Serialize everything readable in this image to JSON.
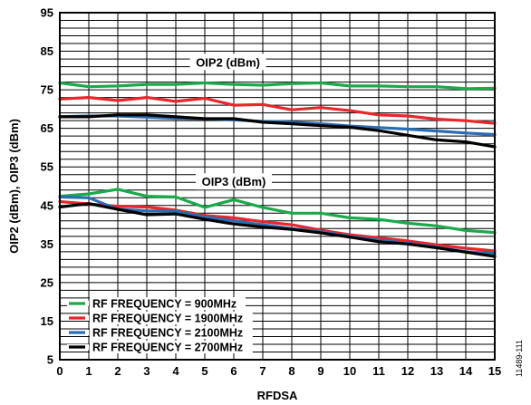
{
  "chart_data": {
    "type": "line",
    "title": "",
    "xlabel": "RFDSA",
    "ylabel": "OIP2 (dBm), OIP3 (dBm)",
    "xlim": [
      0,
      15
    ],
    "ylim": [
      5,
      95
    ],
    "x_ticks": [
      "0",
      "1",
      "2",
      "3",
      "4",
      "5",
      "6",
      "7",
      "8",
      "9",
      "10",
      "11",
      "12",
      "13",
      "14",
      "15"
    ],
    "y_ticks": [
      "5",
      "15",
      "25",
      "35",
      "45",
      "55",
      "65",
      "75",
      "85",
      "95"
    ],
    "grid": true,
    "legend_placement": "bottom-left",
    "annotations": [
      {
        "text": "OIP2 (dBm)",
        "x": 5.8,
        "y": 82
      },
      {
        "text": "OIP3 (dBm)",
        "x": 6.0,
        "y": 51
      }
    ],
    "figure_id": "11489-111",
    "x": [
      0,
      1,
      2,
      3,
      4,
      5,
      6,
      7,
      8,
      9,
      10,
      11,
      12,
      13,
      14,
      15
    ],
    "series": [
      {
        "name": "RF FREQUENCY = 900MHz",
        "group": "OIP2",
        "color": "#1aaa4a",
        "values": [
          76.8,
          75.8,
          76.0,
          76.4,
          76.4,
          76.8,
          76.4,
          76.2,
          76.6,
          76.8,
          76.0,
          76.0,
          75.8,
          75.8,
          75.3,
          75.4
        ]
      },
      {
        "name": "RF FREQUENCY = 1900MHz",
        "group": "OIP2",
        "color": "#e8262b",
        "values": [
          72.6,
          73.0,
          72.2,
          73.0,
          72.0,
          72.8,
          71.0,
          71.2,
          69.8,
          70.4,
          69.6,
          68.5,
          68.2,
          67.4,
          67.0,
          66.3
        ]
      },
      {
        "name": "RF FREQUENCY = 2100MHz",
        "group": "OIP2",
        "color": "#2a6db5",
        "values": [
          68.0,
          68.2,
          68.2,
          67.9,
          67.6,
          67.5,
          67.2,
          66.8,
          66.6,
          66.2,
          65.6,
          65.2,
          64.8,
          64.3,
          63.8,
          63.4
        ]
      },
      {
        "name": "RF FREQUENCY = 2700MHz",
        "group": "OIP2",
        "color": "#000000",
        "values": [
          68.0,
          68.0,
          68.5,
          68.5,
          68.0,
          67.5,
          67.5,
          66.6,
          66.2,
          65.7,
          65.3,
          64.4,
          63.2,
          62.0,
          61.5,
          60.2
        ]
      },
      {
        "name": "RF FREQUENCY = 900MHz",
        "group": "OIP3",
        "color": "#1aaa4a",
        "values": [
          47.4,
          48.0,
          49.2,
          47.4,
          47.2,
          44.5,
          46.5,
          44.5,
          43.0,
          43.0,
          41.8,
          41.4,
          40.4,
          39.7,
          38.5,
          38.0
        ]
      },
      {
        "name": "RF FREQUENCY = 1900MHz",
        "group": "OIP3",
        "color": "#e8262b",
        "values": [
          46.0,
          45.4,
          44.8,
          44.6,
          43.8,
          42.4,
          41.8,
          40.8,
          40.0,
          38.6,
          37.4,
          36.6,
          35.8,
          34.8,
          33.9,
          33.2
        ]
      },
      {
        "name": "RF FREQUENCY = 2100MHz",
        "group": "OIP3",
        "color": "#2a6db5",
        "values": [
          47.2,
          47.0,
          44.0,
          43.6,
          43.5,
          42.0,
          41.0,
          40.0,
          39.0,
          38.2,
          37.0,
          36.0,
          35.2,
          34.2,
          33.0,
          32.5
        ]
      },
      {
        "name": "RF FREQUENCY = 2700MHz",
        "group": "OIP3",
        "color": "#000000",
        "values": [
          44.6,
          45.5,
          44.0,
          42.6,
          42.8,
          41.4,
          40.2,
          39.4,
          38.8,
          37.9,
          36.8,
          35.6,
          35.0,
          34.0,
          32.9,
          31.8
        ]
      }
    ],
    "legend": [
      {
        "label": "RF FREQUENCY = 900MHz",
        "color": "#1aaa4a"
      },
      {
        "label": "RF FREQUENCY = 1900MHz",
        "color": "#e8262b"
      },
      {
        "label": "RF FREQUENCY = 2100MHz",
        "color": "#2a6db5"
      },
      {
        "label": "RF FREQUENCY = 2700MHz",
        "color": "#000000"
      }
    ]
  }
}
